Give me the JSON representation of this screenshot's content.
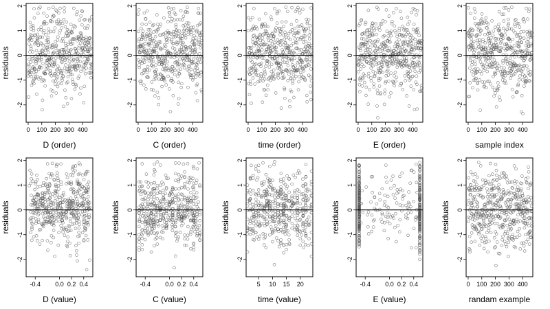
{
  "chart_data": [
    {
      "type": "scatter",
      "xlabel": "D (order)",
      "ylabel": "residuals",
      "xticks": [
        0,
        100,
        200,
        300,
        400
      ],
      "xlim": [
        -15,
        475
      ],
      "yticks": [
        -2,
        -1,
        0,
        1,
        2
      ],
      "ylim": [
        -2.7,
        2.1
      ],
      "reference_line_y": 0,
      "pattern": "order",
      "n": 470,
      "seed": 11
    },
    {
      "type": "scatter",
      "xlabel": "C (order)",
      "ylabel": "residuals",
      "xticks": [
        0,
        100,
        200,
        300,
        400
      ],
      "xlim": [
        -15,
        475
      ],
      "yticks": [
        -2,
        -1,
        0,
        1,
        2
      ],
      "ylim": [
        -2.7,
        2.1
      ],
      "reference_line_y": 0,
      "pattern": "order",
      "n": 470,
      "seed": 23
    },
    {
      "type": "scatter",
      "xlabel": "time (order)",
      "ylabel": "residuals",
      "xticks": [
        0,
        100,
        200,
        300,
        400
      ],
      "xlim": [
        -15,
        475
      ],
      "yticks": [
        -2,
        -1,
        0,
        1,
        2
      ],
      "ylim": [
        -2.7,
        2.1
      ],
      "reference_line_y": 0,
      "pattern": "order",
      "n": 470,
      "seed": 37
    },
    {
      "type": "scatter",
      "xlabel": "E (order)",
      "ylabel": "residuals",
      "xticks": [
        0,
        100,
        200,
        300,
        400
      ],
      "xlim": [
        -15,
        475
      ],
      "yticks": [
        -2,
        -1,
        0,
        1,
        2
      ],
      "ylim": [
        -2.7,
        2.1
      ],
      "reference_line_y": 0,
      "pattern": "order",
      "n": 470,
      "seed": 41
    },
    {
      "type": "scatter",
      "xlabel": "sample index",
      "ylabel": "residuals",
      "xticks": [
        0,
        100,
        200,
        300,
        400
      ],
      "xlim": [
        -15,
        475
      ],
      "yticks": [
        -2,
        -1,
        0,
        1,
        2
      ],
      "ylim": [
        -2.7,
        2.1
      ],
      "reference_line_y": 0,
      "pattern": "order",
      "n": 470,
      "seed": 53
    },
    {
      "type": "scatter",
      "xlabel": "D (value)",
      "ylabel": "residuals",
      "xticks": [
        -0.4,
        0,
        0.2,
        0.4
      ],
      "xtick_labels": [
        "-0.4",
        "0.0",
        "0.2",
        "0.4"
      ],
      "xlim": [
        -0.55,
        0.55
      ],
      "yticks": [
        -2,
        -1,
        0,
        1,
        2
      ],
      "ylim": [
        -2.7,
        2.1
      ],
      "reference_line_y": 0,
      "pattern": "dense",
      "n": 470,
      "seed": 61
    },
    {
      "type": "scatter",
      "xlabel": "C (value)",
      "ylabel": "residuals",
      "xticks": [
        -0.4,
        0,
        0.2,
        0.4
      ],
      "xtick_labels": [
        "-0.4",
        "0.0",
        "0.2",
        "0.4"
      ],
      "xlim": [
        -0.55,
        0.55
      ],
      "yticks": [
        -2,
        -1,
        0,
        1,
        2
      ],
      "ylim": [
        -2.7,
        2.1
      ],
      "reference_line_y": 0,
      "pattern": "columns",
      "x_levels": [
        -0.5,
        -0.45,
        -0.4,
        -0.35,
        -0.3,
        -0.25,
        -0.2,
        -0.15,
        -0.1,
        -0.05,
        0,
        0.05,
        0.1,
        0.15,
        0.2,
        0.25,
        0.3,
        0.35,
        0.4,
        0.45,
        0.5
      ],
      "n": 470,
      "seed": 71
    },
    {
      "type": "scatter",
      "xlabel": "time (value)",
      "ylabel": "residuals",
      "xticks": [
        5,
        10,
        15,
        20
      ],
      "xlim": [
        0.5,
        24.5
      ],
      "yticks": [
        -2,
        -1,
        0,
        1,
        2
      ],
      "ylim": [
        -2.7,
        2.1
      ],
      "reference_line_y": 0,
      "pattern": "columns",
      "x_levels": [
        1,
        2,
        3,
        4,
        5,
        6,
        7,
        8,
        9,
        10,
        11,
        12,
        13,
        14,
        15,
        16,
        17,
        18,
        19,
        20,
        21,
        22,
        23,
        24
      ],
      "n": 470,
      "seed": 83
    },
    {
      "type": "scatter",
      "xlabel": "E (value)",
      "ylabel": "residuals",
      "xticks": [
        -0.4,
        0,
        0.2,
        0.4
      ],
      "xtick_labels": [
        "-0.4",
        "0.0",
        "0.2",
        "0.4"
      ],
      "xlim": [
        -0.55,
        0.55
      ],
      "yticks": [
        -2,
        -1,
        0,
        1,
        2
      ],
      "ylim": [
        -2.7,
        2.1
      ],
      "reference_line_y": 0,
      "pattern": "edges",
      "n": 470,
      "seed": 97
    },
    {
      "type": "scatter",
      "xlabel": "randam example",
      "ylabel": "residuals",
      "xticks": [
        0,
        100,
        200,
        300,
        400
      ],
      "xlim": [
        -15,
        475
      ],
      "yticks": [
        -2,
        -1,
        0,
        1,
        2
      ],
      "ylim": [
        -2.7,
        2.1
      ],
      "reference_line_y": 0,
      "pattern": "order",
      "n": 470,
      "seed": 101
    }
  ]
}
